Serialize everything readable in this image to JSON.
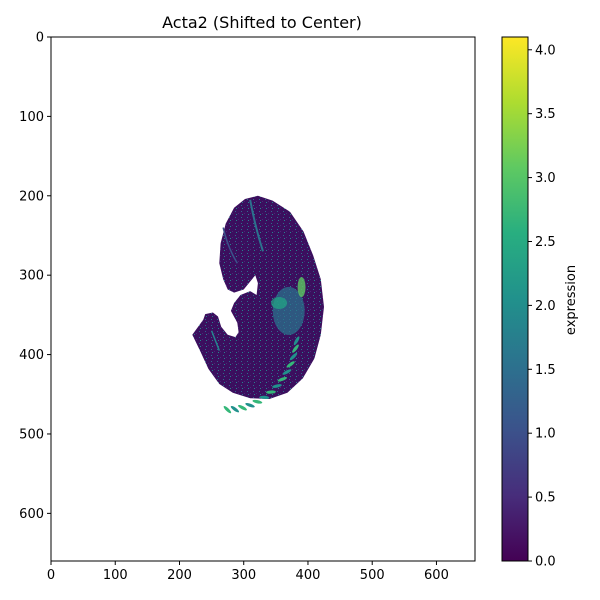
{
  "chart_data": {
    "type": "heatmap",
    "title": "Acta2 (Shifted to Center)",
    "xlabel": "",
    "ylabel": "",
    "xlim": [
      0,
      660
    ],
    "ylim": [
      660,
      0
    ],
    "x_ticks": [
      0,
      100,
      200,
      300,
      400,
      500,
      600
    ],
    "y_ticks": [
      0,
      100,
      200,
      300,
      400,
      500,
      600
    ],
    "colorbar": {
      "label": "expression",
      "range": [
        0.0,
        4.1
      ],
      "ticks": [
        "0.0",
        "0.5",
        "1.0",
        "1.5",
        "2.0",
        "2.5",
        "3.0",
        "3.5",
        "4.0"
      ],
      "colormap": "viridis"
    },
    "grid": false,
    "regions": [
      {
        "name": "embryo body background",
        "expression": 0.4
      },
      {
        "name": "heart / somite band",
        "expression": 2.6
      },
      {
        "name": "vessel streaks",
        "expression": 1.6
      }
    ]
  },
  "colors": {
    "viridis_low": "#440154",
    "viridis_mid": "#21918c",
    "viridis_high": "#fde725",
    "axis": "#000000"
  }
}
